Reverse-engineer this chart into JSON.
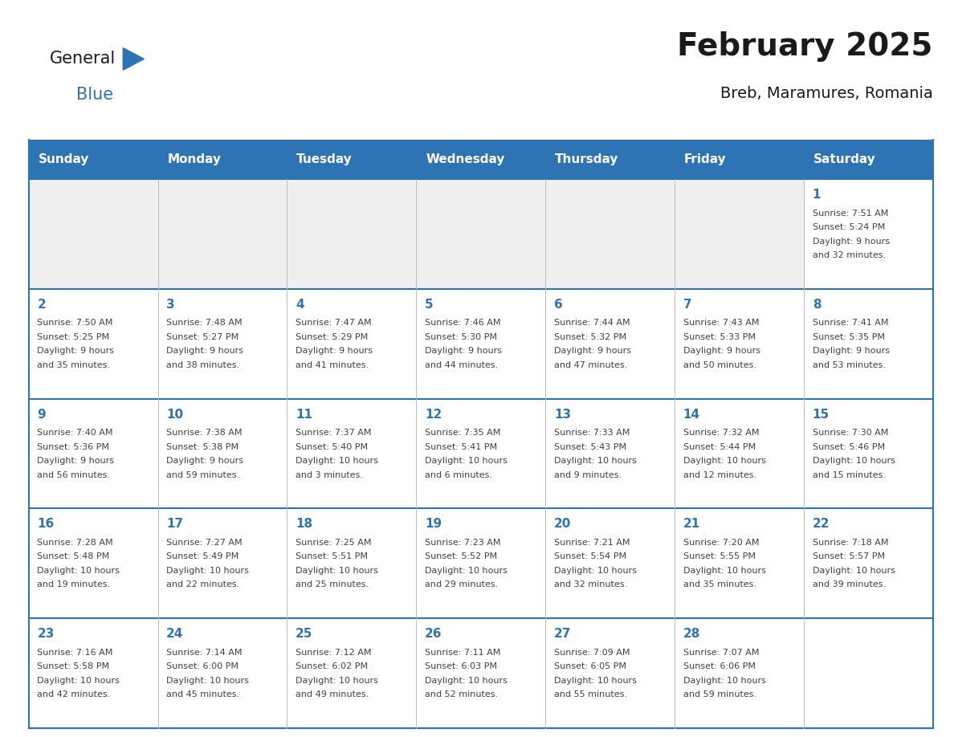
{
  "title": "February 2025",
  "subtitle": "Breb, Maramures, Romania",
  "header_bg": "#2E74B5",
  "header_text_color": "#FFFFFF",
  "cell_bg_light": "#FFFFFF",
  "cell_bg_gray": "#EFEFEF",
  "border_color": "#2E74B5",
  "day_number_color": "#2E74B5",
  "info_text_color": "#404040",
  "days_of_week": [
    "Sunday",
    "Monday",
    "Tuesday",
    "Wednesday",
    "Thursday",
    "Friday",
    "Saturday"
  ],
  "calendar_data": [
    [
      null,
      null,
      null,
      null,
      null,
      null,
      {
        "day": 1,
        "sunrise": "7:51 AM",
        "sunset": "5:24 PM",
        "daylight_hours": 9,
        "daylight_minutes": 32
      }
    ],
    [
      {
        "day": 2,
        "sunrise": "7:50 AM",
        "sunset": "5:25 PM",
        "daylight_hours": 9,
        "daylight_minutes": 35
      },
      {
        "day": 3,
        "sunrise": "7:48 AM",
        "sunset": "5:27 PM",
        "daylight_hours": 9,
        "daylight_minutes": 38
      },
      {
        "day": 4,
        "sunrise": "7:47 AM",
        "sunset": "5:29 PM",
        "daylight_hours": 9,
        "daylight_minutes": 41
      },
      {
        "day": 5,
        "sunrise": "7:46 AM",
        "sunset": "5:30 PM",
        "daylight_hours": 9,
        "daylight_minutes": 44
      },
      {
        "day": 6,
        "sunrise": "7:44 AM",
        "sunset": "5:32 PM",
        "daylight_hours": 9,
        "daylight_minutes": 47
      },
      {
        "day": 7,
        "sunrise": "7:43 AM",
        "sunset": "5:33 PM",
        "daylight_hours": 9,
        "daylight_minutes": 50
      },
      {
        "day": 8,
        "sunrise": "7:41 AM",
        "sunset": "5:35 PM",
        "daylight_hours": 9,
        "daylight_minutes": 53
      }
    ],
    [
      {
        "day": 9,
        "sunrise": "7:40 AM",
        "sunset": "5:36 PM",
        "daylight_hours": 9,
        "daylight_minutes": 56
      },
      {
        "day": 10,
        "sunrise": "7:38 AM",
        "sunset": "5:38 PM",
        "daylight_hours": 9,
        "daylight_minutes": 59
      },
      {
        "day": 11,
        "sunrise": "7:37 AM",
        "sunset": "5:40 PM",
        "daylight_hours": 10,
        "daylight_minutes": 3
      },
      {
        "day": 12,
        "sunrise": "7:35 AM",
        "sunset": "5:41 PM",
        "daylight_hours": 10,
        "daylight_minutes": 6
      },
      {
        "day": 13,
        "sunrise": "7:33 AM",
        "sunset": "5:43 PM",
        "daylight_hours": 10,
        "daylight_minutes": 9
      },
      {
        "day": 14,
        "sunrise": "7:32 AM",
        "sunset": "5:44 PM",
        "daylight_hours": 10,
        "daylight_minutes": 12
      },
      {
        "day": 15,
        "sunrise": "7:30 AM",
        "sunset": "5:46 PM",
        "daylight_hours": 10,
        "daylight_minutes": 15
      }
    ],
    [
      {
        "day": 16,
        "sunrise": "7:28 AM",
        "sunset": "5:48 PM",
        "daylight_hours": 10,
        "daylight_minutes": 19
      },
      {
        "day": 17,
        "sunrise": "7:27 AM",
        "sunset": "5:49 PM",
        "daylight_hours": 10,
        "daylight_minutes": 22
      },
      {
        "day": 18,
        "sunrise": "7:25 AM",
        "sunset": "5:51 PM",
        "daylight_hours": 10,
        "daylight_minutes": 25
      },
      {
        "day": 19,
        "sunrise": "7:23 AM",
        "sunset": "5:52 PM",
        "daylight_hours": 10,
        "daylight_minutes": 29
      },
      {
        "day": 20,
        "sunrise": "7:21 AM",
        "sunset": "5:54 PM",
        "daylight_hours": 10,
        "daylight_minutes": 32
      },
      {
        "day": 21,
        "sunrise": "7:20 AM",
        "sunset": "5:55 PM",
        "daylight_hours": 10,
        "daylight_minutes": 35
      },
      {
        "day": 22,
        "sunrise": "7:18 AM",
        "sunset": "5:57 PM",
        "daylight_hours": 10,
        "daylight_minutes": 39
      }
    ],
    [
      {
        "day": 23,
        "sunrise": "7:16 AM",
        "sunset": "5:58 PM",
        "daylight_hours": 10,
        "daylight_minutes": 42
      },
      {
        "day": 24,
        "sunrise": "7:14 AM",
        "sunset": "6:00 PM",
        "daylight_hours": 10,
        "daylight_minutes": 45
      },
      {
        "day": 25,
        "sunrise": "7:12 AM",
        "sunset": "6:02 PM",
        "daylight_hours": 10,
        "daylight_minutes": 49
      },
      {
        "day": 26,
        "sunrise": "7:11 AM",
        "sunset": "6:03 PM",
        "daylight_hours": 10,
        "daylight_minutes": 52
      },
      {
        "day": 27,
        "sunrise": "7:09 AM",
        "sunset": "6:05 PM",
        "daylight_hours": 10,
        "daylight_minutes": 55
      },
      {
        "day": 28,
        "sunrise": "7:07 AM",
        "sunset": "6:06 PM",
        "daylight_hours": 10,
        "daylight_minutes": 59
      },
      null
    ]
  ],
  "logo_color_general": "#1a1a1a",
  "logo_color_blue": "#2E74B5",
  "logo_triangle_color": "#2E74B5"
}
